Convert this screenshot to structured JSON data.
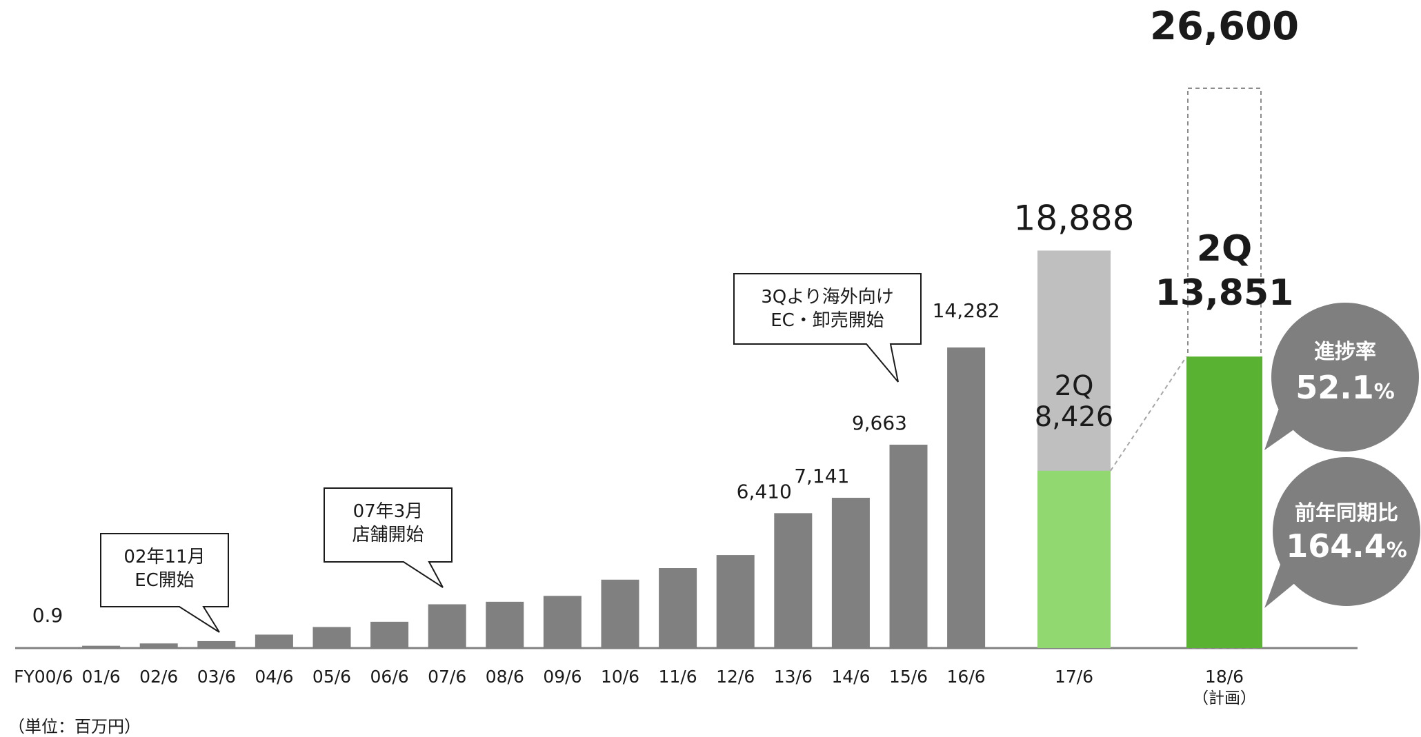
{
  "chart_data": {
    "type": "bar",
    "unit_note": "（単位：百万円）",
    "categories": [
      "FY00/6",
      "01/6",
      "02/6",
      "03/6",
      "04/6",
      "05/6",
      "06/6",
      "07/6",
      "08/6",
      "09/6",
      "10/6",
      "11/6",
      "12/6",
      "13/6",
      "14/6",
      "15/6",
      "16/6"
    ],
    "values": [
      0.9,
      110,
      220,
      330,
      640,
      1000,
      1250,
      2080,
      2200,
      2480,
      3250,
      3800,
      4420,
      6410,
      7141,
      9663,
      14282
    ],
    "data_labels": [
      {
        "index": 0,
        "text": "0.9"
      },
      {
        "index": 13,
        "text": "6,410"
      },
      {
        "index": 14,
        "text": "7,141"
      },
      {
        "index": 15,
        "text": "9,663"
      },
      {
        "index": 16,
        "text": "14,282"
      }
    ],
    "fy17": {
      "category": "17/6",
      "total": 18888,
      "total_label": "18,888",
      "q2": 8426,
      "q2_label": "8,426",
      "q2_prefix": "2Q"
    },
    "fy18": {
      "category": "18/6",
      "category_sub": "（計画）",
      "plan": 26600,
      "plan_label": "26,600",
      "q2": 13851,
      "q2_label": "13,851",
      "q2_prefix": "2Q"
    },
    "callouts": [
      {
        "lines": [
          "02年11月",
          "EC開始"
        ],
        "target_index": 3
      },
      {
        "lines": [
          "07年3月",
          "店舗開始"
        ],
        "target_index": 7
      },
      {
        "lines": [
          "3Qより海外向け",
          "EC・卸売開始"
        ],
        "target_index": 15
      }
    ],
    "bubbles": [
      {
        "title": "進捗率",
        "value": "52.1",
        "unit": "%"
      },
      {
        "title": "前年同期比",
        "value": "164.4",
        "unit": "%"
      }
    ],
    "colors": {
      "bar": "#808080",
      "fy17_total": "#bfbfbf",
      "fy17_q2": "#92d870",
      "fy18_q2": "#5ab232",
      "bubble": "#7f7f7f",
      "axis": "#808080"
    },
    "ylim": [
      0,
      28000
    ],
    "grid": false,
    "legend": "none"
  }
}
